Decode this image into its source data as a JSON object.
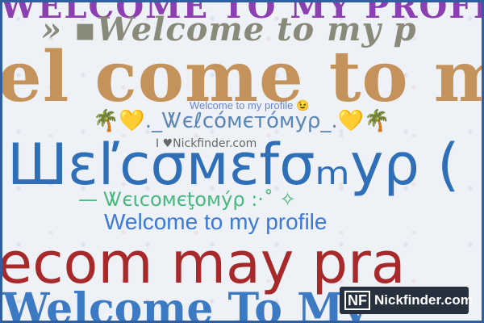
{
  "lines": {
    "top": "»WELCOME TO MY PROFILE«",
    "welcome_italic": "» ▪Welcome to my p",
    "big_tan": "el come to m",
    "small_blue": "Welcome to my profile 😉",
    "deco": "🌴💛._Ꮤєℓcóмєтóмуρ_.💛🌴",
    "tiny_gray": "I ♥Nickfinder.com",
    "big_blue": "Шɛľcσмɛfσₘуρ (",
    "green": "— Ꮤєιcoмєţoмýρ :·˚ ✧",
    "profile_blue": "Welcome to my profile",
    "red": "ecom may pra",
    "bottom_blue": "Welcome To My"
  },
  "badge": {
    "mark": "NF",
    "label": "Nickfinder.com"
  }
}
